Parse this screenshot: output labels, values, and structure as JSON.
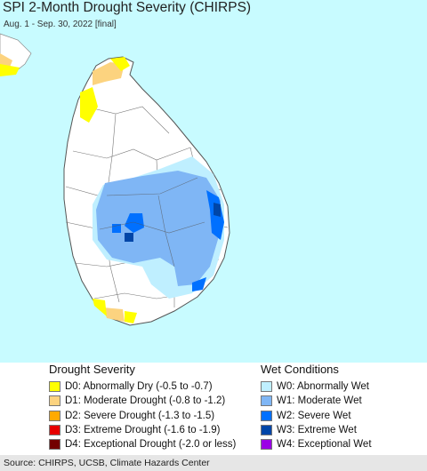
{
  "header": {
    "title": "SPI 2-Month Drought Severity (CHIRPS)",
    "subtitle": "Aug. 1 - Sep. 30, 2022 [final]"
  },
  "colors": {
    "ocean": "#c8fbff",
    "land": "#ffffff",
    "boundary": "#666666",
    "D0": "#ffff00",
    "D1": "#fcd37f",
    "D2": "#ffaa00",
    "D3": "#e60000",
    "D4": "#730000",
    "W0": "#bfefff",
    "W1": "#7fb6f5",
    "W2": "#0070ff",
    "W3": "#0046a8",
    "W4": "#9b00e6"
  },
  "legend": {
    "drought_title": "Drought Severity",
    "drought_items": [
      {
        "label": "D0: Abnormally Dry (-0.5 to -0.7)",
        "color": "#ffff00"
      },
      {
        "label": "D1: Moderate Drought (-0.8 to -1.2)",
        "color": "#fcd37f"
      },
      {
        "label": "D2: Severe Drought (-1.3 to -1.5)",
        "color": "#ffaa00"
      },
      {
        "label": "D3: Extreme Drought (-1.6 to -1.9)",
        "color": "#e60000"
      },
      {
        "label": "D4: Exceptional Drought (-2.0 or less)",
        "color": "#730000"
      }
    ],
    "wet_title": "Wet Conditions",
    "wet_items": [
      {
        "label": "W0: Abnormally Wet",
        "color": "#bfefff"
      },
      {
        "label": "W1: Moderate Wet",
        "color": "#7fb6f5"
      },
      {
        "label": "W2: Severe Wet",
        "color": "#0070ff"
      },
      {
        "label": "W3: Extreme Wet",
        "color": "#0046a8"
      },
      {
        "label": "W4: Exceptional Wet",
        "color": "#9b00e6"
      }
    ]
  },
  "footer": {
    "source": "Source: CHIRPS, UCSB, Climate Hazards Center"
  }
}
